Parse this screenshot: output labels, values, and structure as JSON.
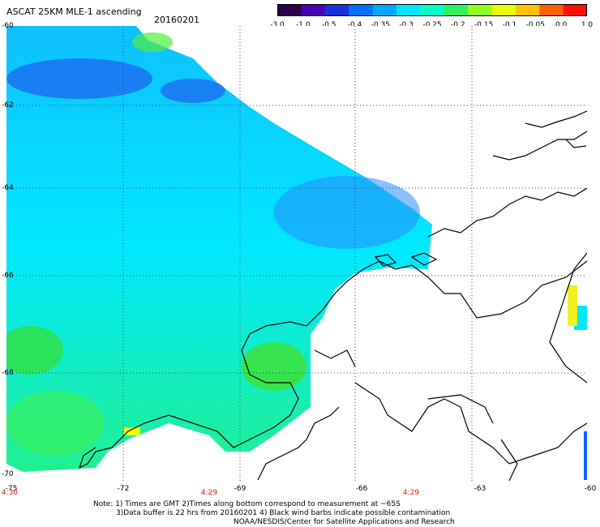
{
  "header": {
    "title": "ASCAT 25KM MLE-1 ascending",
    "date": "20160201"
  },
  "colorbar": {
    "labels": [
      "-3.0",
      "-1.0",
      "-0.5",
      "-0.4",
      "-0.35",
      "-0.3",
      "-0.25",
      "-0.2",
      "-0.15",
      "-0.1",
      "-0.05",
      "0.0",
      "1.0"
    ],
    "colors": [
      "#2a0048",
      "#4b00b0",
      "#1830e0",
      "#0070ff",
      "#00a8ff",
      "#00e4ff",
      "#00ffc8",
      "#30f060",
      "#90ff20",
      "#e8ff00",
      "#ffc000",
      "#ff6000",
      "#ff1000"
    ]
  },
  "map": {
    "lat_labels": [
      "-60",
      "-62",
      "-64",
      "-66",
      "-68",
      "-70"
    ],
    "lon_labels": [
      "-75",
      "-72",
      "-69",
      "-66",
      "-63",
      "-60"
    ],
    "time_labels": [
      "4:30",
      "4:29",
      "4:29"
    ]
  },
  "notes": {
    "line1": "Note: 1) Times are GMT 2)Times along bottom correspond to measurement at ~65S",
    "line2": "3)Data buffer is 22 hrs from 20160201 4) Black wind barbs indicate possible contamination",
    "line3": "NOAA/NESDIS/Center for Satellite Applications and Research"
  }
}
